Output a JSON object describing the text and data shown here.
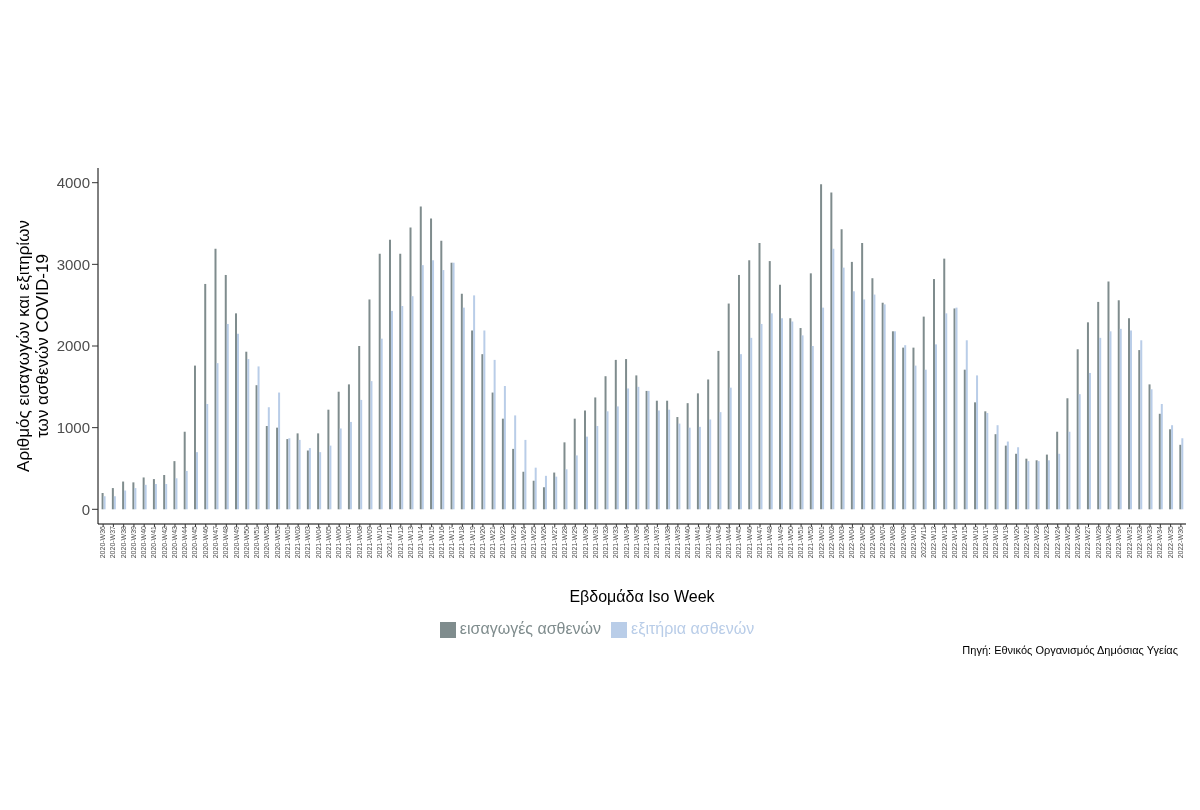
{
  "chart_data": {
    "type": "bar",
    "xlabel": "Εβδομάδα Iso Week",
    "ylabel": "Αριθμός εισαγωγών και εξιτηρίων των ασθενών COVID-19",
    "categories": [
      "2020-W36",
      "2020-W37",
      "2020-W38",
      "2020-W39",
      "2020-W40",
      "2020-W41",
      "2020-W42",
      "2020-W43",
      "2020-W44",
      "2020-W45",
      "2020-W46",
      "2020-W47",
      "2020-W48",
      "2020-W49",
      "2020-W50",
      "2020-W51",
      "2020-W52",
      "2020-W53",
      "2021-W01",
      "2021-W02",
      "2021-W03",
      "2021-W04",
      "2021-W05",
      "2021-W06",
      "2021-W07",
      "2021-W08",
      "2021-W09",
      "2021-W10",
      "2021-W11",
      "2021-W12",
      "2021-W13",
      "2021-W14",
      "2021-W15",
      "2021-W16",
      "2021-W17",
      "2021-W18",
      "2021-W19",
      "2021-W20",
      "2021-W21",
      "2021-W22",
      "2021-W23",
      "2021-W24",
      "2021-W25",
      "2021-W26",
      "2021-W27",
      "2021-W28",
      "2021-W29",
      "2021-W30",
      "2021-W31",
      "2021-W32",
      "2021-W33",
      "2021-W34",
      "2021-W35",
      "2021-W36",
      "2021-W37",
      "2021-W38",
      "2021-W39",
      "2021-W40",
      "2021-W41",
      "2021-W42",
      "2021-W43",
      "2021-W44",
      "2021-W45",
      "2021-W46",
      "2021-W47",
      "2021-W48",
      "2021-W49",
      "2021-W50",
      "2021-W51",
      "2021-W52",
      "2022-W01",
      "2022-W02",
      "2022-W03",
      "2022-W04",
      "2022-W05",
      "2022-W06",
      "2022-W07",
      "2022-W08",
      "2022-W09",
      "2022-W10",
      "2022-W11",
      "2022-W12",
      "2022-W13",
      "2022-W14",
      "2022-W15",
      "2022-W16",
      "2022-W17",
      "2022-W18",
      "2022-W19",
      "2022-W20",
      "2022-W21",
      "2022-W22",
      "2022-W23",
      "2022-W24",
      "2022-W25",
      "2022-W26",
      "2022-W27",
      "2022-W28",
      "2022-W29",
      "2022-W30",
      "2022-W31",
      "2022-W32",
      "2022-W33",
      "2022-W34",
      "2022-W35",
      "2022-W36"
    ],
    "series": [
      {
        "name": "εισαγωγές ασθενών",
        "color": "#7f8c8d",
        "values": [
          200,
          260,
          340,
          330,
          390,
          370,
          420,
          590,
          950,
          1760,
          2760,
          3190,
          2870,
          2400,
          1930,
          1520,
          1020,
          1000,
          860,
          930,
          720,
          930,
          1220,
          1440,
          1530,
          2000,
          2570,
          3130,
          3300,
          3130,
          3450,
          3710,
          3560,
          3290,
          3020,
          2640,
          2190,
          1900,
          1430,
          1110,
          740,
          460,
          350,
          270,
          450,
          820,
          1110,
          1210,
          1370,
          1630,
          1830,
          1840,
          1640,
          1450,
          1330,
          1330,
          1130,
          1300,
          1420,
          1590,
          1940,
          2520,
          2870,
          3050,
          3260,
          3040,
          2750,
          2340,
          2220,
          2890,
          3980,
          3880,
          3430,
          3030,
          3260,
          2830,
          2530,
          2180,
          1980,
          1980,
          2360,
          2820,
          3070,
          2460,
          1710,
          1310,
          1200,
          920,
          780,
          680,
          620,
          600,
          670,
          950,
          1360,
          1960,
          2290,
          2540,
          2790,
          2560,
          2340,
          1950,
          1530,
          1170,
          980,
          790
        ]
      },
      {
        "name": "εξιτήρια ασθενών",
        "color": "#b9cde8",
        "values": [
          160,
          160,
          230,
          260,
          300,
          310,
          310,
          380,
          470,
          700,
          1290,
          1790,
          2270,
          2150,
          1840,
          1750,
          1250,
          1430,
          870,
          850,
          750,
          700,
          780,
          990,
          1070,
          1340,
          1570,
          2090,
          2430,
          2490,
          2610,
          2990,
          3050,
          2930,
          3020,
          2470,
          2620,
          2190,
          1830,
          1510,
          1150,
          850,
          510,
          410,
          400,
          490,
          660,
          890,
          1020,
          1200,
          1260,
          1480,
          1500,
          1450,
          1210,
          1220,
          1050,
          1000,
          1010,
          1100,
          1190,
          1490,
          1900,
          2100,
          2270,
          2400,
          2340,
          2300,
          2130,
          2000,
          2470,
          3190,
          2960,
          2670,
          2570,
          2630,
          2510,
          2180,
          2010,
          1760,
          1710,
          2020,
          2400,
          2470,
          2070,
          1640,
          1180,
          1030,
          830,
          760,
          590,
          590,
          600,
          680,
          950,
          1410,
          1670,
          2100,
          2180,
          2210,
          2190,
          2070,
          1470,
          1290,
          1030,
          870
        ]
      }
    ],
    "ylim": [
      -180,
      4180
    ],
    "yticks": [
      0,
      1000,
      2000,
      3000,
      4000
    ],
    "grid": false,
    "legend": "bottom",
    "annotations": [
      "Πηγή: Εθνικός Οργανισμός Δημόσιας Υγείας"
    ]
  }
}
